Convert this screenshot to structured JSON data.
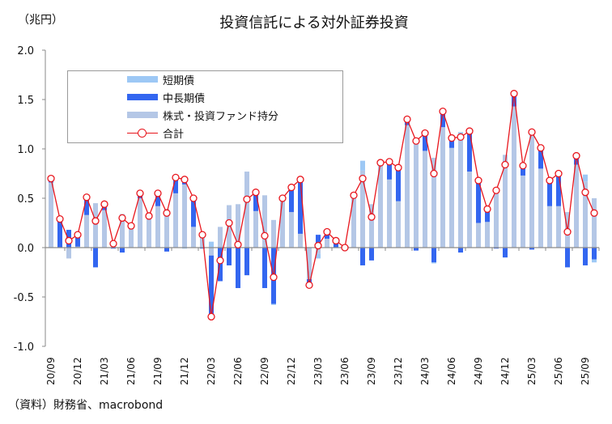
{
  "page": {
    "title": "投資信託による対外証券投資",
    "unit_label": "（兆円）",
    "source": "（資料）財務省、macrobond"
  },
  "legend": {
    "items": [
      {
        "label": "短期債",
        "color": "#9dc8f5",
        "kind": "bar"
      },
      {
        "label": "中長期債",
        "color": "#3366f0",
        "kind": "bar"
      },
      {
        "label": "株式・投資ファンド持分",
        "color": "#b4c7e6",
        "kind": "bar"
      },
      {
        "label": "合計",
        "color": "#e8161d",
        "kind": "line-marker"
      }
    ]
  },
  "chart_data": {
    "type": "bar",
    "stacked": true,
    "title": "投資信託による対外証券投資",
    "ylabel": "（兆円）",
    "xlabel": "",
    "ylim": [
      -1.0,
      2.0
    ],
    "yticks": [
      2.0,
      1.5,
      1.0,
      0.5,
      0.0,
      -0.5,
      -1.0
    ],
    "ytick_labels": [
      "2.0",
      "1.5",
      "1.0",
      "0.5",
      "0.0",
      "-0.5",
      "-1.0"
    ],
    "grid": false,
    "legend_position": "top-left",
    "x": [
      "20/09",
      "20/10",
      "20/11",
      "20/12",
      "21/01",
      "21/02",
      "21/03",
      "21/04",
      "21/05",
      "21/06",
      "21/07",
      "21/08",
      "21/09",
      "21/10",
      "21/11",
      "21/12",
      "22/01",
      "22/02",
      "22/03",
      "22/04",
      "22/05",
      "22/06",
      "22/07",
      "22/08",
      "22/09",
      "22/10",
      "22/11",
      "22/12",
      "23/01",
      "23/02",
      "23/03",
      "23/04",
      "23/05",
      "23/06",
      "23/07",
      "23/08",
      "23/09",
      "23/10",
      "23/11",
      "23/12",
      "24/01",
      "24/02",
      "24/03",
      "24/04",
      "24/05",
      "24/06",
      "24/07",
      "24/08",
      "24/09",
      "24/10",
      "24/11",
      "24/12",
      "25/01",
      "25/02",
      "25/03",
      "25/04",
      "25/05",
      "25/06",
      "25/07",
      "25/08",
      "25/09",
      "25/10"
    ],
    "xtick_labels": [
      "20/09",
      "20/12",
      "21/03",
      "21/06",
      "21/09",
      "21/12",
      "22/03",
      "22/06",
      "22/09",
      "22/12",
      "23/03",
      "23/06",
      "23/09",
      "23/12",
      "24/03",
      "24/06",
      "24/09",
      "24/12",
      "25/03",
      "25/06",
      "25/09"
    ],
    "series": [
      {
        "name": "短期債",
        "color": "#9dc8f5",
        "values": [
          0.0,
          0.0,
          0.0,
          0.0,
          0.0,
          0.0,
          0.0,
          0.0,
          0.0,
          0.0,
          0.0,
          0.0,
          0.0,
          0.0,
          0.0,
          -0.01,
          0.0,
          0.0,
          0.06,
          0.0,
          0.0,
          0.0,
          0.0,
          0.0,
          0.0,
          -0.01,
          0.0,
          0.0,
          0.0,
          0.0,
          -0.05,
          0.0,
          0.02,
          0.0,
          0.0,
          0.1,
          0.0,
          0.0,
          0.0,
          0.0,
          0.0,
          0.0,
          0.0,
          -0.01,
          0.0,
          0.0,
          0.05,
          0.0,
          0.0,
          0.0,
          0.0,
          0.0,
          0.0,
          0.0,
          0.0,
          0.0,
          0.0,
          0.0,
          0.0,
          0.0,
          0.07,
          -0.03
        ]
      },
      {
        "name": "中長期債",
        "color": "#3366f0",
        "values": [
          0.04,
          0.29,
          0.18,
          0.14,
          0.18,
          -0.2,
          0.06,
          -0.01,
          -0.05,
          0.0,
          0.05,
          0.0,
          0.13,
          -0.04,
          0.16,
          0.06,
          0.29,
          -0.01,
          -0.62,
          -0.34,
          -0.18,
          -0.41,
          -0.28,
          0.19,
          -0.41,
          -0.57,
          0.03,
          0.25,
          0.55,
          -0.06,
          0.13,
          0.07,
          0.05,
          -0.03,
          0.0,
          -0.18,
          -0.13,
          0.0,
          0.18,
          0.34,
          0.06,
          -0.03,
          0.18,
          -0.15,
          0.16,
          0.1,
          -0.05,
          0.41,
          0.43,
          0.13,
          -0.01,
          -0.1,
          0.13,
          0.1,
          -0.02,
          0.21,
          0.26,
          0.33,
          -0.2,
          0.09,
          -0.18,
          -0.12
        ]
      },
      {
        "name": "株式・投資ファンド持分",
        "color": "#b4c7e6",
        "values": [
          0.66,
          0.0,
          -0.11,
          0.01,
          0.33,
          0.45,
          0.38,
          0.05,
          0.34,
          0.22,
          0.5,
          0.32,
          0.42,
          0.39,
          0.55,
          0.64,
          0.21,
          0.14,
          -0.08,
          0.21,
          0.43,
          0.44,
          0.77,
          0.37,
          0.53,
          0.28,
          0.47,
          0.36,
          0.14,
          -0.32,
          -0.06,
          0.09,
          0.0,
          0.03,
          0.53,
          0.78,
          0.44,
          0.86,
          0.69,
          0.47,
          1.24,
          1.11,
          0.98,
          0.91,
          1.22,
          1.01,
          1.12,
          0.77,
          0.25,
          0.26,
          0.59,
          0.94,
          1.43,
          0.73,
          1.19,
          0.8,
          0.42,
          0.42,
          0.36,
          0.84,
          0.67,
          0.5
        ]
      },
      {
        "name": "合計",
        "type": "line",
        "color": "#e8161d",
        "values": [
          0.7,
          0.29,
          0.07,
          0.13,
          0.51,
          0.27,
          0.44,
          0.04,
          0.3,
          0.22,
          0.55,
          0.32,
          0.55,
          0.35,
          0.71,
          0.69,
          0.5,
          0.13,
          -0.7,
          -0.13,
          0.25,
          0.03,
          0.49,
          0.56,
          0.12,
          -0.3,
          0.5,
          0.61,
          0.69,
          -0.38,
          0.02,
          0.16,
          0.07,
          0.0,
          0.53,
          0.7,
          0.31,
          0.86,
          0.87,
          0.81,
          1.3,
          1.08,
          1.16,
          0.75,
          1.38,
          1.11,
          1.12,
          1.18,
          0.68,
          0.39,
          0.58,
          0.84,
          1.56,
          0.83,
          1.17,
          1.01,
          0.68,
          0.75,
          0.16,
          0.93,
          0.56,
          0.35
        ]
      }
    ]
  }
}
